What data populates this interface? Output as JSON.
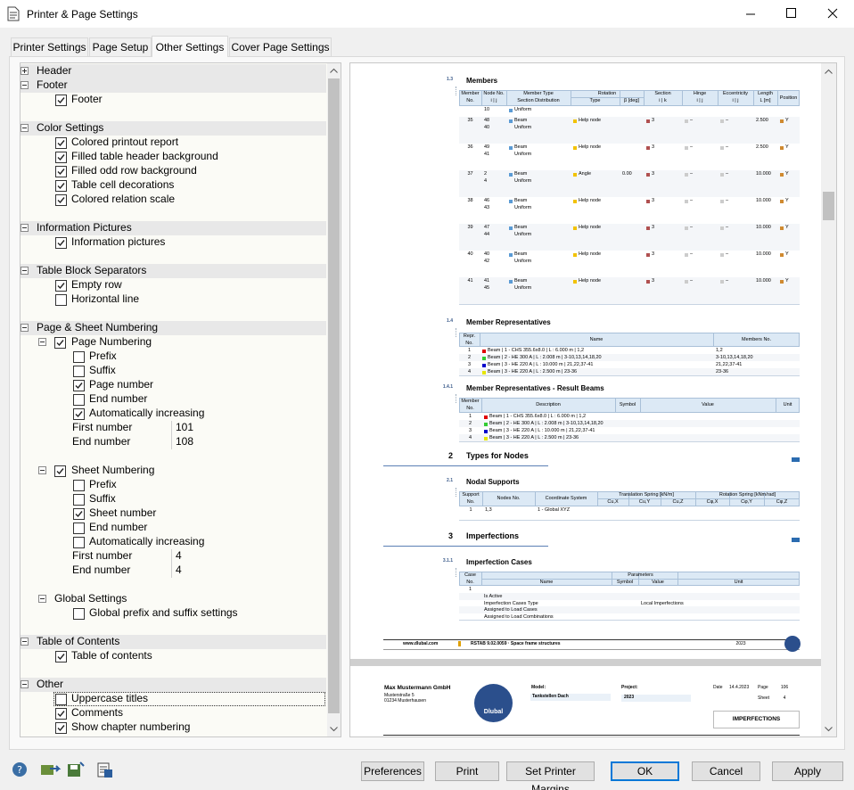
{
  "window": {
    "title": "Printer & Page Settings"
  },
  "tabs": {
    "items": [
      "Printer Settings",
      "Page Setup",
      "Other Settings",
      "Cover Page Settings"
    ],
    "active": 2
  },
  "tree": [
    {
      "label": "Header",
      "collapsed": true
    },
    {
      "label": "Footer",
      "children": [
        {
          "label": "Footer",
          "checked": true
        }
      ]
    },
    {
      "label": "Color Settings",
      "children": [
        {
          "label": "Colored printout report",
          "checked": true
        },
        {
          "label": "Filled table header background",
          "checked": true
        },
        {
          "label": "Filled odd row background",
          "checked": true
        },
        {
          "label": "Table cell decorations",
          "checked": true
        },
        {
          "label": "Colored relation scale",
          "checked": true
        }
      ]
    },
    {
      "label": "Information Pictures",
      "children": [
        {
          "label": "Information pictures",
          "checked": true
        }
      ]
    },
    {
      "label": "Table Block Separators",
      "children": [
        {
          "label": "Empty row",
          "checked": true
        },
        {
          "label": "Horizontal line",
          "checked": false
        }
      ]
    },
    {
      "label": "Page & Sheet Numbering",
      "children": [
        {
          "label": "Page Numbering",
          "checked": true,
          "children": [
            {
              "label": "Prefix",
              "checked": false
            },
            {
              "label": "Suffix",
              "checked": false
            },
            {
              "label": "Page number",
              "checked": true
            },
            {
              "label": "End number",
              "checked": false
            },
            {
              "label": "Automatically increasing",
              "checked": true
            },
            {
              "label": "First number",
              "value": 101
            },
            {
              "label": "End number",
              "value": 108
            }
          ]
        },
        {
          "label": "Sheet Numbering",
          "checked": true,
          "children": [
            {
              "label": "Prefix",
              "checked": false
            },
            {
              "label": "Suffix",
              "checked": false
            },
            {
              "label": "Sheet number",
              "checked": true
            },
            {
              "label": "End number",
              "checked": false
            },
            {
              "label": "Automatically increasing",
              "checked": false
            },
            {
              "label": "First number",
              "value": 4
            },
            {
              "label": "End number",
              "value": 4
            }
          ]
        },
        {
          "label": "Global Settings",
          "children": [
            {
              "label": "Global prefix and suffix settings",
              "checked": false
            }
          ]
        }
      ]
    },
    {
      "label": "Table of Contents",
      "children": [
        {
          "label": "Table of contents",
          "checked": true
        }
      ]
    },
    {
      "label": "Other",
      "children": [
        {
          "label": "Uppercase titles",
          "checked": false,
          "focused": true
        },
        {
          "label": "Comments",
          "checked": true
        },
        {
          "label": "Show chapter numbering",
          "checked": true
        }
      ]
    }
  ],
  "preview": {
    "sections": [
      {
        "number": "1.3",
        "title": "Members",
        "table": {
          "header": [
            [
              "Member",
              "No."
            ],
            [
              "Node No.",
              "i | j"
            ],
            [
              "Member Type",
              "Section Distribution"
            ],
            [
              "Type"
            ],
            [
              "β [deg]"
            ],
            [
              "Section",
              "i | k"
            ],
            [
              "Hinge",
              "i | j"
            ],
            [
              "Eccentricity",
              "i | j"
            ],
            [
              "Length",
              "L [m]"
            ],
            [
              "Position"
            ]
          ],
          "spans": [
            {
              "label": "Rotation",
              "from": 3,
              "to": 4
            }
          ],
          "rows": [
            [
              null,
              [
                "10"
              ],
              [
                "Uniform"
              ],
              null,
              null,
              null,
              null,
              null,
              null,
              null
            ],
            [
              [
                "35"
              ],
              [
                "48",
                "40"
              ],
              [
                "Beam",
                "Uniform"
              ],
              [
                "Help node"
              ],
              null,
              [
                "3"
              ],
              [
                "–"
              ],
              [
                "–"
              ],
              [
                "2.500"
              ],
              [
                "Y"
              ]
            ],
            [
              [
                "36"
              ],
              [
                "49",
                "41"
              ],
              [
                "Beam",
                "Uniform"
              ],
              [
                "Help node"
              ],
              null,
              [
                "3"
              ],
              [
                "–"
              ],
              [
                "–"
              ],
              [
                "2.500"
              ],
              [
                "Y"
              ]
            ],
            [
              [
                "37"
              ],
              [
                "2",
                "4"
              ],
              [
                "Beam",
                "Uniform"
              ],
              [
                "Angle"
              ],
              [
                "0.00"
              ],
              [
                "3"
              ],
              [
                "–"
              ],
              [
                "–"
              ],
              [
                "10.000"
              ],
              [
                "Y"
              ]
            ],
            [
              [
                "38"
              ],
              [
                "46",
                "43"
              ],
              [
                "Beam",
                "Uniform"
              ],
              [
                "Help node"
              ],
              null,
              [
                "3"
              ],
              [
                "–"
              ],
              [
                "–"
              ],
              [
                "10.000"
              ],
              [
                "Y"
              ]
            ],
            [
              [
                "39"
              ],
              [
                "47",
                "44"
              ],
              [
                "Beam",
                "Uniform"
              ],
              [
                "Help node"
              ],
              null,
              [
                "3"
              ],
              [
                "–"
              ],
              [
                "–"
              ],
              [
                "10.000"
              ],
              [
                "Y"
              ]
            ],
            [
              [
                "40"
              ],
              [
                "40",
                "42"
              ],
              [
                "Beam",
                "Uniform"
              ],
              [
                "Help node"
              ],
              null,
              [
                "3"
              ],
              [
                "–"
              ],
              [
                "–"
              ],
              [
                "10.000"
              ],
              [
                "Y"
              ]
            ],
            [
              [
                "41"
              ],
              [
                "41",
                "45"
              ],
              [
                "Beam",
                "Uniform"
              ],
              [
                "Help node"
              ],
              null,
              [
                "3"
              ],
              [
                "–"
              ],
              [
                "–"
              ],
              [
                "10.000"
              ],
              [
                "Y"
              ]
            ]
          ]
        }
      },
      {
        "number": "1.4",
        "title": "Member Representatives",
        "table": {
          "header": [
            [
              "Repr.",
              "No."
            ],
            [
              "Name"
            ],
            [
              "Members No."
            ]
          ],
          "colors": [
            "#e00000",
            "#33cc33",
            "#0000cc",
            "#e6e600"
          ],
          "rows": [
            [
              "1",
              "Beam | 1 - CHS 355.6x8.0 | L : 6.000 m | 1,2",
              "1,2"
            ],
            [
              "2",
              "Beam | 2 - HE 300 A | L : 2.008 m | 3-10,13,14,18,20",
              "3-10,13,14,18,20"
            ],
            [
              "3",
              "Beam | 3 - HE 220 A | L : 10.000 m | 21,22,37-41",
              "21,22,37-41"
            ],
            [
              "4",
              "Beam | 3 - HE 220 A | L : 2.500 m | 23-36",
              "23-36"
            ]
          ]
        }
      },
      {
        "number": "1.4.1",
        "title": "Member Representatives - Result Beams",
        "table": {
          "header": [
            [
              "Member",
              "No."
            ],
            [
              "Description"
            ],
            [
              "Symbol"
            ],
            [
              "Value"
            ],
            [
              "Unit"
            ]
          ],
          "colors": [
            "#e00000",
            "#33cc33",
            "#0000cc",
            "#e6e600"
          ],
          "rows": [
            [
              "1",
              "Beam | 1 - CHS 355.6x8.0 | L : 6.000 m | 1,2"
            ],
            [
              "2",
              "Beam | 2 - HE 300 A | L : 2.008 m | 3-10,13,14,18,20"
            ],
            [
              "3",
              "Beam | 3 - HE 220 A | L : 10.000 m | 21,22,37-41"
            ],
            [
              "4",
              "Beam | 3 - HE 220 A | L : 2.500 m | 23-36"
            ]
          ]
        }
      },
      {
        "number": "2",
        "title": "Types for Nodes",
        "chapter": true
      },
      {
        "number": "2.1",
        "title": "Nodal Supports",
        "table": {
          "header": [
            [
              "Support",
              "No."
            ],
            [
              "Nodes No."
            ],
            [
              "Coordinate System"
            ],
            [
              "Cu,X"
            ],
            [
              "Cu,Y"
            ],
            [
              "Cu,Z"
            ],
            [
              "Cφ,X"
            ],
            [
              "Cφ,Y"
            ],
            [
              "Cφ,Z"
            ]
          ],
          "spans": [
            {
              "label": "Translation Spring [kN/m]",
              "from": 3,
              "to": 5
            },
            {
              "label": "Rotation Spring [kNm/rad]",
              "from": 6,
              "to": 8
            }
          ],
          "rows": [
            [
              "1",
              "1,3",
              "1 - Global XYZ"
            ]
          ]
        }
      },
      {
        "number": "3",
        "title": "Imperfections",
        "chapter": true
      },
      {
        "number": "3.1.1",
        "title": "Imperfection Cases",
        "table": {
          "header": [
            [
              "Case",
              "No."
            ],
            [
              "Name"
            ],
            [
              "Symbol"
            ],
            [
              "Value"
            ],
            [
              "Unit"
            ]
          ],
          "spans": [
            {
              "label": "Parameters",
              "from": 1,
              "to": 4
            }
          ],
          "rows": [
            [
              "1"
            ],
            [
              null,
              "Is Active"
            ],
            [
              null,
              "Imperfection Cases Type",
              null,
              "Local Imperfections"
            ],
            [
              null,
              "Assigned to Load Cases"
            ],
            [
              null,
              "Assigned to Load Combinations"
            ]
          ]
        }
      }
    ],
    "footer": {
      "website": "www.dlubal.com",
      "program": "RSTAB 9.02.0059 · Space frame structures",
      "year": "2023"
    },
    "title_block": {
      "company": "Max Mustermann GmbH",
      "street": "Musterstraße 5",
      "city": "01234 Musterhausen",
      "logo": "Dlubal",
      "model_label": "Model:",
      "model": "Tankstellen Dach",
      "project_label": "Project:",
      "project": "2023",
      "date_label": "Date",
      "date": "14.4.2023",
      "page_label": "Page",
      "page": "106",
      "sheet_label": "Sheet",
      "sheet": "4",
      "chapter": "IMPERFECTIONS"
    }
  },
  "buttons": {
    "items": [
      "Preferences",
      "Print",
      "Set Printer Margins",
      "OK",
      "Cancel",
      "Apply"
    ],
    "default": 3
  }
}
